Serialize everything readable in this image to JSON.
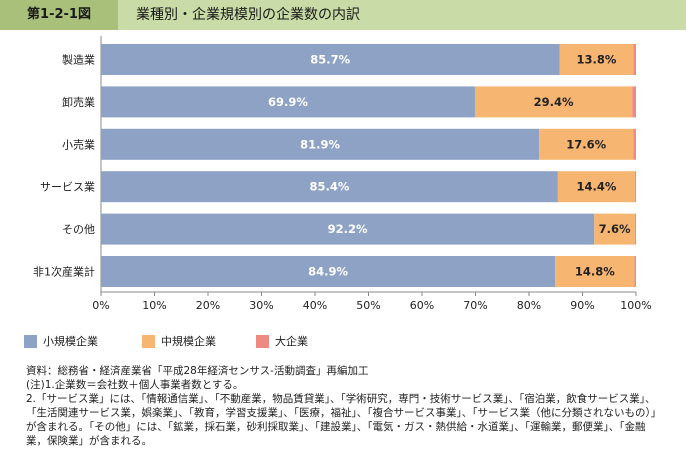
{
  "figure": {
    "label": "第1-2-1図",
    "title": "業種別・企業規模別の企業数の内訳"
  },
  "colors": {
    "small": "#8da2c4",
    "medium": "#f7b572",
    "large": "#ee8a84",
    "header_bg": "#c9dba6",
    "label_bg": "#a8c07a"
  },
  "chart_data": {
    "type": "bar",
    "orientation": "horizontal",
    "stacked": true,
    "categories": [
      "製造業",
      "卸売業",
      "小売業",
      "サービス業",
      "その他",
      "非1次産業計"
    ],
    "series": [
      {
        "name": "小規模企業",
        "values": [
          85.7,
          69.9,
          81.9,
          85.4,
          92.2,
          84.9
        ],
        "labels": [
          "85.7%",
          "69.9%",
          "81.9%",
          "85.4%",
          "92.2%",
          "84.9%"
        ]
      },
      {
        "name": "中規模企業",
        "values": [
          13.8,
          29.4,
          17.6,
          14.4,
          7.6,
          14.8
        ],
        "labels": [
          "13.8%",
          "29.4%",
          "17.6%",
          "14.4%",
          "7.6%",
          "14.8%"
        ]
      },
      {
        "name": "大企業",
        "values": [
          0.5,
          0.7,
          0.5,
          0.2,
          0.2,
          0.3
        ]
      }
    ],
    "xlim": [
      0,
      100
    ],
    "xticks": [
      "0%",
      "10%",
      "20%",
      "30%",
      "40%",
      "50%",
      "60%",
      "70%",
      "80%",
      "90%",
      "100%"
    ],
    "legend_position": "bottom-left"
  },
  "notes": {
    "source": "資料：総務省・経済産業省「平成28年経済センサス‐活動調査」再編加工",
    "note1": "(注)1.企業数＝会社数＋個人事業者数とする。",
    "note2": "2.「サービス業」には、「情報通信業」、「不動産業，物品賃貸業」、「学術研究，専門・技術サービス業」、「宿泊業，飲食サービス業」、「生活関連サービス業，娯楽業」、「教育，学習支援業」、「医療，福祉」、「複合サービス事業」、「サービス業（他に分類されないもの）」が含まれる。「その他」には、「鉱業，採石業，砂利採取業」、「建設業」、「電気・ガス・熱供給・水道業」、「運輸業，郵便業」、「金融業，保険業」が含まれる。"
  }
}
